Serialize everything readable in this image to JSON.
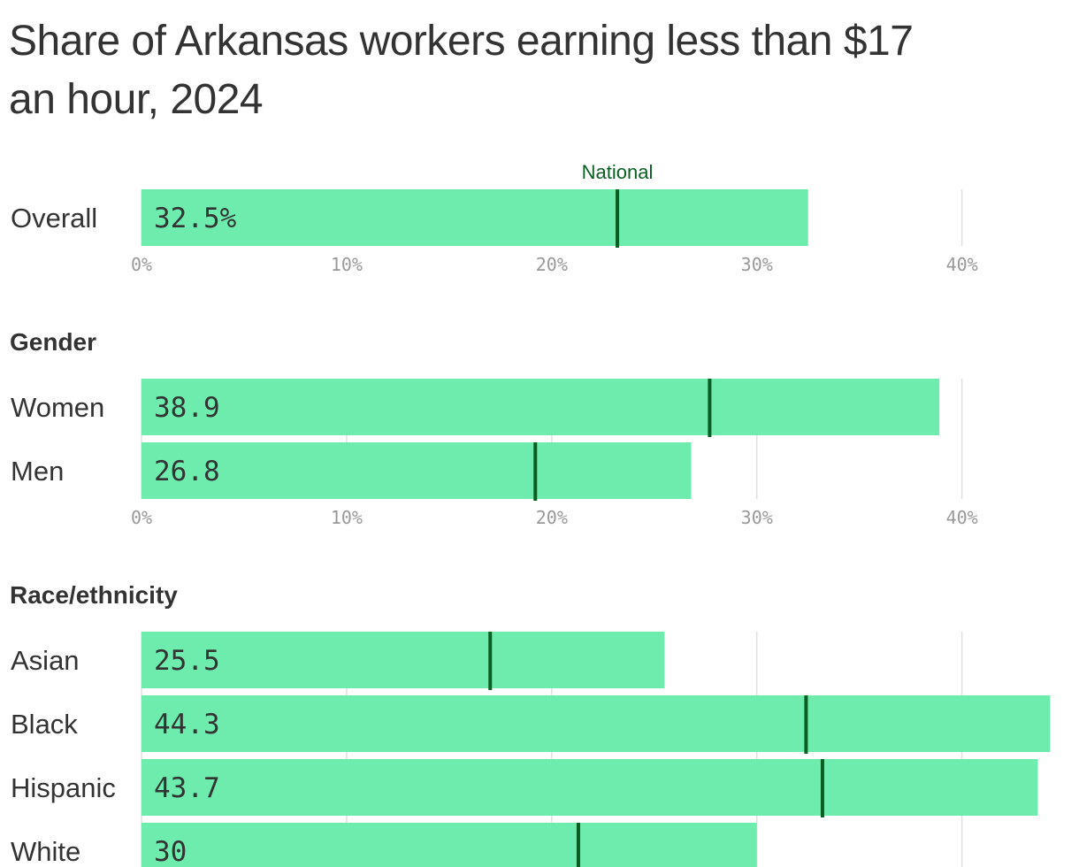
{
  "chart_data": {
    "type": "bar",
    "title_lines": [
      "Share of Arkansas workers earning less than $17",
      "an hour, 2024"
    ],
    "national_label": "National",
    "xlim": [
      0,
      44.5
    ],
    "ticks": [
      {
        "value": 0,
        "label": "0%"
      },
      {
        "value": 10,
        "label": "10%"
      },
      {
        "value": 20,
        "label": "20%"
      },
      {
        "value": 30,
        "label": "30%"
      },
      {
        "value": 40,
        "label": "40%"
      }
    ],
    "groups": [
      {
        "heading": "",
        "rows": [
          {
            "category": "Overall",
            "value": 32.5,
            "label": "32.5%",
            "national": 23.2
          }
        ]
      },
      {
        "heading": "Gender",
        "rows": [
          {
            "category": "Women",
            "value": 38.9,
            "label": "38.9",
            "national": 27.7
          },
          {
            "category": "Men",
            "value": 26.8,
            "label": "26.8",
            "national": 19.2
          }
        ]
      },
      {
        "heading": "Race/ethnicity",
        "rows": [
          {
            "category": "Asian",
            "value": 25.5,
            "label": "25.5",
            "national": 17.0
          },
          {
            "category": "Black",
            "value": 44.3,
            "label": "44.3",
            "national": 32.4
          },
          {
            "category": "Hispanic",
            "value": 43.7,
            "label": "43.7",
            "national": 33.2
          },
          {
            "category": "White",
            "value": 30,
            "label": "30",
            "national": 21.3
          }
        ]
      }
    ],
    "colors": {
      "bar": "#6eecae",
      "national_marker": "#0b5e22",
      "grid": "#e0e0e0"
    }
  }
}
